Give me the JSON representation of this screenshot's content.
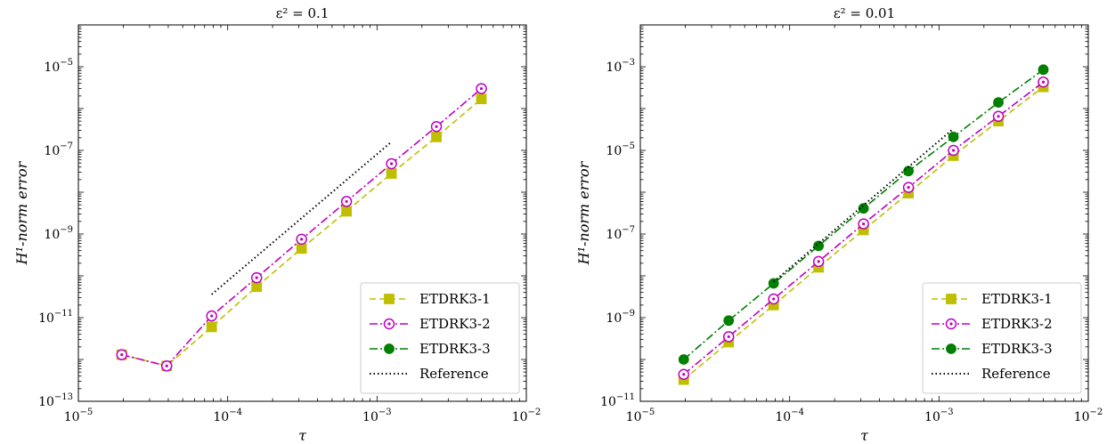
{
  "chart_data": [
    {
      "type": "line",
      "title": "ε² = 0.1",
      "xlabel": "τ",
      "ylabel": "H¹-norm error",
      "xscale": "log",
      "yscale": "log",
      "xlim": [
        1e-05,
        0.01
      ],
      "ylim": [
        1e-13,
        0.0001
      ],
      "x_ticks": [
        {
          "base": "10",
          "exp": "−5",
          "value": 1e-05
        },
        {
          "base": "10",
          "exp": "−4",
          "value": 0.0001
        },
        {
          "base": "10",
          "exp": "−3",
          "value": 0.001
        },
        {
          "base": "10",
          "exp": "−2",
          "value": 0.01
        }
      ],
      "y_ticks": [
        {
          "base": "10",
          "exp": "−13",
          "value": 1e-13
        },
        {
          "base": "10",
          "exp": "−11",
          "value": 1e-11
        },
        {
          "base": "10",
          "exp": "−9",
          "value": 1e-09
        },
        {
          "base": "10",
          "exp": "−7",
          "value": 1e-07
        },
        {
          "base": "10",
          "exp": "−5",
          "value": 1e-05
        }
      ],
      "legend_position": "lower-right",
      "series": [
        {
          "name": "ETDRK3-1",
          "color": "#bfbf00",
          "style": "dashed",
          "marker": "square-filled",
          "x": [
            1.953e-05,
            3.906e-05,
            7.8125e-05,
            0.00015625,
            0.0003125,
            0.000625,
            0.00125,
            0.0025,
            0.005
          ],
          "y": [
            1.3e-12,
            7e-13,
            6e-12,
            5.5e-11,
            4.5e-10,
            3.5e-09,
            2.8e-08,
            2.1e-07,
            1.7e-06
          ]
        },
        {
          "name": "ETDRK3-2",
          "color": "#bf00bf",
          "style": "dashdot",
          "marker": "circle-open-dot",
          "x": [
            1.953e-05,
            3.906e-05,
            7.8125e-05,
            0.00015625,
            0.0003125,
            0.000625,
            0.00125,
            0.0025,
            0.005
          ],
          "y": [
            1.3e-12,
            7e-13,
            1.1e-11,
            9e-11,
            7.5e-10,
            6e-09,
            4.8e-08,
            3.7e-07,
            3e-06
          ]
        },
        {
          "name": "ETDRK3-3",
          "color": "#007f00",
          "style": "dashdot",
          "marker": "circle-filled",
          "x": [],
          "y": []
        },
        {
          "name": "Reference",
          "color": "#000000",
          "style": "dotted",
          "marker": "none",
          "x": [
            7.8125e-05,
            0.00125
          ],
          "y": [
            3.6e-11,
            1.6e-07
          ]
        }
      ]
    },
    {
      "type": "line",
      "title": "ε² = 0.01",
      "xlabel": "τ",
      "ylabel": "H¹-norm error",
      "xscale": "log",
      "yscale": "log",
      "xlim": [
        1e-05,
        0.01
      ],
      "ylim": [
        1e-11,
        0.01
      ],
      "x_ticks": [
        {
          "base": "10",
          "exp": "−5",
          "value": 1e-05
        },
        {
          "base": "10",
          "exp": "−4",
          "value": 0.0001
        },
        {
          "base": "10",
          "exp": "−3",
          "value": 0.001
        },
        {
          "base": "10",
          "exp": "−2",
          "value": 0.01
        }
      ],
      "y_ticks": [
        {
          "base": "10",
          "exp": "−11",
          "value": 1e-11
        },
        {
          "base": "10",
          "exp": "−9",
          "value": 1e-09
        },
        {
          "base": "10",
          "exp": "−7",
          "value": 1e-07
        },
        {
          "base": "10",
          "exp": "−5",
          "value": 1e-05
        },
        {
          "base": "10",
          "exp": "−3",
          "value": 0.001
        }
      ],
      "legend_position": "lower-right",
      "series": [
        {
          "name": "ETDRK3-1",
          "color": "#bfbf00",
          "style": "dashed",
          "marker": "square-filled",
          "x": [
            1.953e-05,
            3.906e-05,
            7.8125e-05,
            0.00015625,
            0.0003125,
            0.000625,
            0.00125,
            0.0025,
            0.005
          ],
          "y": [
            3.3e-11,
            2.6e-10,
            2e-09,
            1.6e-08,
            1.25e-07,
            9.5e-07,
            7.5e-06,
            5e-05,
            0.00033
          ]
        },
        {
          "name": "ETDRK3-2",
          "color": "#bf00bf",
          "style": "dashdot",
          "marker": "circle-open-dot",
          "x": [
            1.953e-05,
            3.906e-05,
            7.8125e-05,
            0.00015625,
            0.0003125,
            0.000625,
            0.00125,
            0.0025,
            0.005
          ],
          "y": [
            4.4e-11,
            3.5e-10,
            2.8e-09,
            2.2e-08,
            1.75e-07,
            1.3e-06,
            1e-05,
            6.5e-05,
            0.00043
          ]
        },
        {
          "name": "ETDRK3-3",
          "color": "#007f00",
          "style": "dashdot",
          "marker": "circle-filled",
          "x": [
            1.953e-05,
            3.906e-05,
            7.8125e-05,
            0.00015625,
            0.0003125,
            0.000625,
            0.00125,
            0.0025,
            0.005
          ],
          "y": [
            1e-10,
            8.5e-10,
            6.6e-09,
            5.2e-08,
            4.1e-07,
            3.2e-06,
            2.1e-05,
            0.00014,
            0.00085
          ]
        },
        {
          "name": "Reference",
          "color": "#000000",
          "style": "dotted",
          "marker": "none",
          "x": [
            7.8125e-05,
            0.00125
          ],
          "y": [
            7.2e-09,
            3.3e-05
          ]
        }
      ]
    }
  ]
}
